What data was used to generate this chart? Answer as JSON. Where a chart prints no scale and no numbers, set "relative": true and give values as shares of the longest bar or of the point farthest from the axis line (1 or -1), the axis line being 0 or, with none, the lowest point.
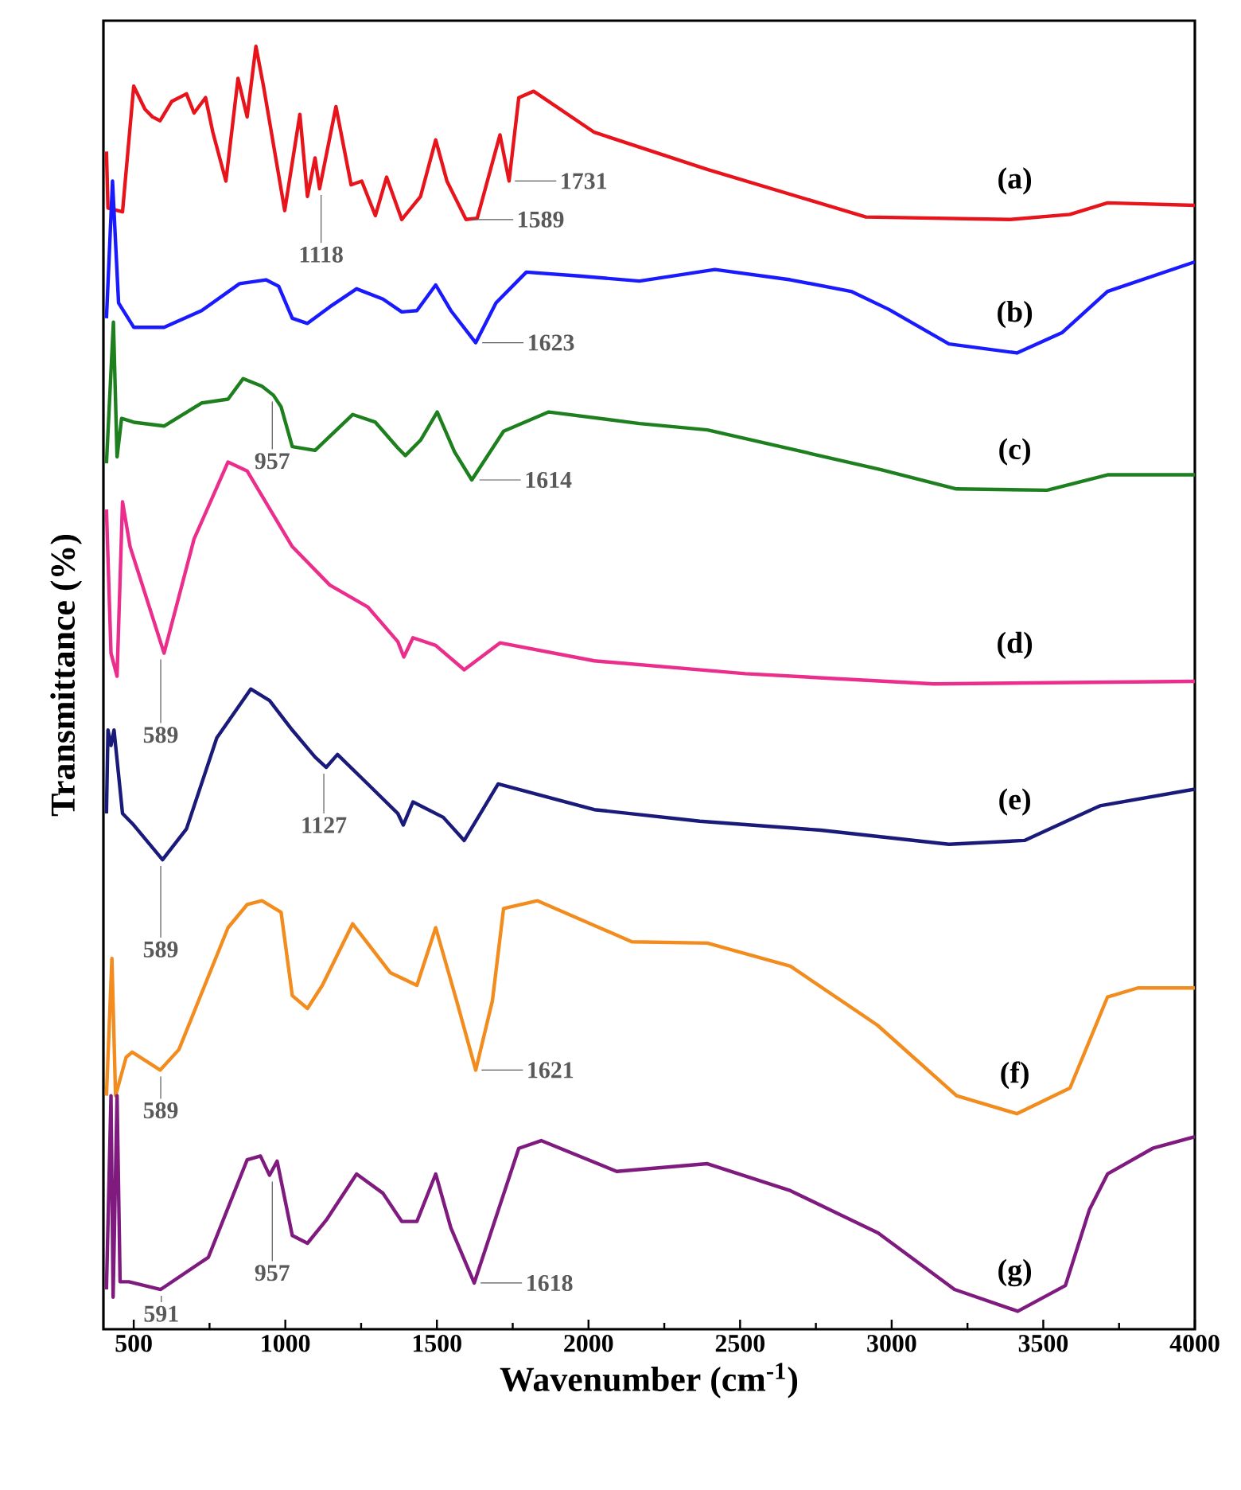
{
  "chart_data": {
    "type": "line",
    "relative": true,
    "xlabel": "Wavenumber (cm$^{-1}$)",
    "ylabel": "Transmittance (%)",
    "xlim": [
      400,
      4000
    ],
    "xticks": [
      500,
      1000,
      1500,
      2000,
      2500,
      3000,
      3500,
      4000
    ],
    "tick_labels": "x",
    "series": [
      {
        "name": "(a)",
        "color": "#e8141c",
        "x": [
          410,
          415,
          463,
          500,
          537,
          562,
          587,
          625,
          674,
          699,
          737,
          761,
          804,
          844,
          874,
          903,
          928,
          998,
          1048,
          1073,
          1098,
          1113,
          1167,
          1217,
          1252,
          1297,
          1334,
          1384,
          1446,
          1496,
          1533,
          1596,
          1633,
          1708,
          1738,
          1770,
          1819,
          2019,
          2392,
          2915,
          3388,
          3588,
          3712,
          4000
        ],
        "values": [
          0.918,
          0.874,
          0.871,
          0.969,
          0.951,
          0.945,
          0.942,
          0.957,
          0.963,
          0.948,
          0.96,
          0.933,
          0.895,
          0.975,
          0.945,
          1.0,
          0.969,
          0.872,
          0.947,
          0.883,
          0.913,
          0.889,
          0.953,
          0.892,
          0.895,
          0.868,
          0.898,
          0.865,
          0.883,
          0.927,
          0.895,
          0.865,
          0.866,
          0.931,
          0.895,
          0.96,
          0.965,
          0.933,
          0.904,
          0.867,
          0.865,
          0.869,
          0.878,
          0.876
        ]
      },
      {
        "name": "(b)",
        "color": "#1a1aff",
        "x": [
          410,
          430,
          450,
          500,
          600,
          724,
          849,
          936,
          978,
          1023,
          1073,
          1147,
          1235,
          1322,
          1384,
          1434,
          1496,
          1546,
          1628,
          1695,
          1795,
          1969,
          2168,
          2417,
          2666,
          2866,
          2990,
          3189,
          3413,
          3563,
          3712,
          4000
        ],
        "values": [
          0.788,
          0.895,
          0.8,
          0.781,
          0.781,
          0.794,
          0.815,
          0.818,
          0.813,
          0.788,
          0.784,
          0.797,
          0.811,
          0.803,
          0.793,
          0.794,
          0.814,
          0.794,
          0.769,
          0.8,
          0.824,
          0.821,
          0.817,
          0.826,
          0.818,
          0.809,
          0.795,
          0.768,
          0.761,
          0.777,
          0.809,
          0.832
        ]
      },
      {
        "name": "(c)",
        "color": "#1e7f1e",
        "x": [
          410,
          433,
          445,
          460,
          500,
          600,
          724,
          811,
          861,
          923,
          961,
          986,
          1023,
          1098,
          1222,
          1297,
          1371,
          1396,
          1446,
          1501,
          1558,
          1615,
          1720,
          1869,
          2168,
          2392,
          2965,
          3214,
          3513,
          3712,
          4000
        ],
        "values": [
          0.675,
          0.785,
          0.68,
          0.71,
          0.707,
          0.704,
          0.722,
          0.725,
          0.741,
          0.735,
          0.728,
          0.719,
          0.688,
          0.685,
          0.713,
          0.707,
          0.687,
          0.681,
          0.693,
          0.715,
          0.684,
          0.662,
          0.7,
          0.715,
          0.706,
          0.701,
          0.67,
          0.655,
          0.654,
          0.666,
          0.666
        ]
      },
      {
        "name": "(d)",
        "color": "#eb2d8c",
        "x": [
          410,
          425,
          445,
          463,
          488,
          600,
          699,
          811,
          874,
          1023,
          1147,
          1272,
          1371,
          1391,
          1421,
          1496,
          1590,
          1708,
          2019,
          2517,
          3139,
          4000
        ],
        "values": [
          0.639,
          0.527,
          0.509,
          0.645,
          0.61,
          0.527,
          0.616,
          0.676,
          0.669,
          0.61,
          0.58,
          0.563,
          0.536,
          0.524,
          0.539,
          0.533,
          0.514,
          0.535,
          0.521,
          0.511,
          0.503,
          0.505
        ]
      },
      {
        "name": "(e)",
        "color": "#1a1a7a",
        "x": [
          410,
          415,
          425,
          435,
          463,
          500,
          595,
          674,
          774,
          886,
          948,
          1023,
          1098,
          1135,
          1172,
          1272,
          1371,
          1389,
          1421,
          1521,
          1590,
          1702,
          2019,
          2367,
          2766,
          3189,
          3438,
          3687,
          4000
        ],
        "values": [
          0.402,
          0.467,
          0.455,
          0.467,
          0.402,
          0.393,
          0.366,
          0.39,
          0.461,
          0.499,
          0.49,
          0.467,
          0.446,
          0.438,
          0.448,
          0.425,
          0.402,
          0.393,
          0.411,
          0.399,
          0.381,
          0.425,
          0.405,
          0.396,
          0.389,
          0.378,
          0.381,
          0.408,
          0.421
        ]
      },
      {
        "name": "(f)",
        "color": "#f28c1e",
        "x": [
          410,
          428,
          440,
          475,
          495,
          587,
          649,
          811,
          874,
          923,
          986,
          1023,
          1073,
          1122,
          1222,
          1346,
          1434,
          1496,
          1565,
          1628,
          1683,
          1720,
          1832,
          2143,
          2392,
          2666,
          2953,
          3214,
          3413,
          3588,
          3712,
          3812,
          4000
        ],
        "values": [
          0.182,
          0.289,
          0.182,
          0.212,
          0.216,
          0.202,
          0.218,
          0.313,
          0.331,
          0.334,
          0.325,
          0.26,
          0.25,
          0.268,
          0.316,
          0.278,
          0.268,
          0.313,
          0.256,
          0.202,
          0.256,
          0.328,
          0.334,
          0.302,
          0.301,
          0.283,
          0.237,
          0.182,
          0.168,
          0.188,
          0.259,
          0.266,
          0.266
        ]
      },
      {
        "name": "(g)",
        "color": "#7f1a7f",
        "x": [
          410,
          425,
          432,
          445,
          455,
          484,
          589,
          746,
          874,
          918,
          948,
          973,
          1023,
          1073,
          1135,
          1235,
          1322,
          1384,
          1434,
          1496,
          1546,
          1623,
          1770,
          1844,
          2093,
          2392,
          2666,
          2955,
          3207,
          3416,
          3573,
          3652,
          3712,
          3861,
          4000
        ],
        "values": [
          0.031,
          0.182,
          0.025,
          0.182,
          0.037,
          0.037,
          0.031,
          0.056,
          0.132,
          0.135,
          0.12,
          0.131,
          0.073,
          0.067,
          0.085,
          0.121,
          0.106,
          0.084,
          0.084,
          0.121,
          0.079,
          0.036,
          0.141,
          0.147,
          0.123,
          0.129,
          0.108,
          0.075,
          0.031,
          0.014,
          0.034,
          0.093,
          0.121,
          0.141,
          0.15
        ]
      }
    ],
    "annotations": [
      {
        "text": "1731",
        "x": 1731,
        "y": 0.895
      },
      {
        "text": "1589",
        "x": 1589,
        "y": 0.865
      },
      {
        "text": "1118",
        "x": 1118,
        "y": 0.889
      },
      {
        "text": "1623",
        "x": 1623,
        "y": 0.769
      },
      {
        "text": "1614",
        "x": 1614,
        "y": 0.662
      },
      {
        "text": "957",
        "x": 957,
        "y": 0.728
      },
      {
        "text": "589",
        "x": 589,
        "y": 0.527
      },
      {
        "text": "1127",
        "x": 1127,
        "y": 0.438
      },
      {
        "text": "589",
        "x": 589,
        "y": 0.366
      },
      {
        "text": "1621",
        "x": 1621,
        "y": 0.202
      },
      {
        "text": "589",
        "x": 589,
        "y": 0.202
      },
      {
        "text": "957",
        "x": 957,
        "y": 0.12
      },
      {
        "text": "1618",
        "x": 1618,
        "y": 0.036
      },
      {
        "text": "591",
        "x": 591,
        "y": 0.031
      }
    ]
  }
}
